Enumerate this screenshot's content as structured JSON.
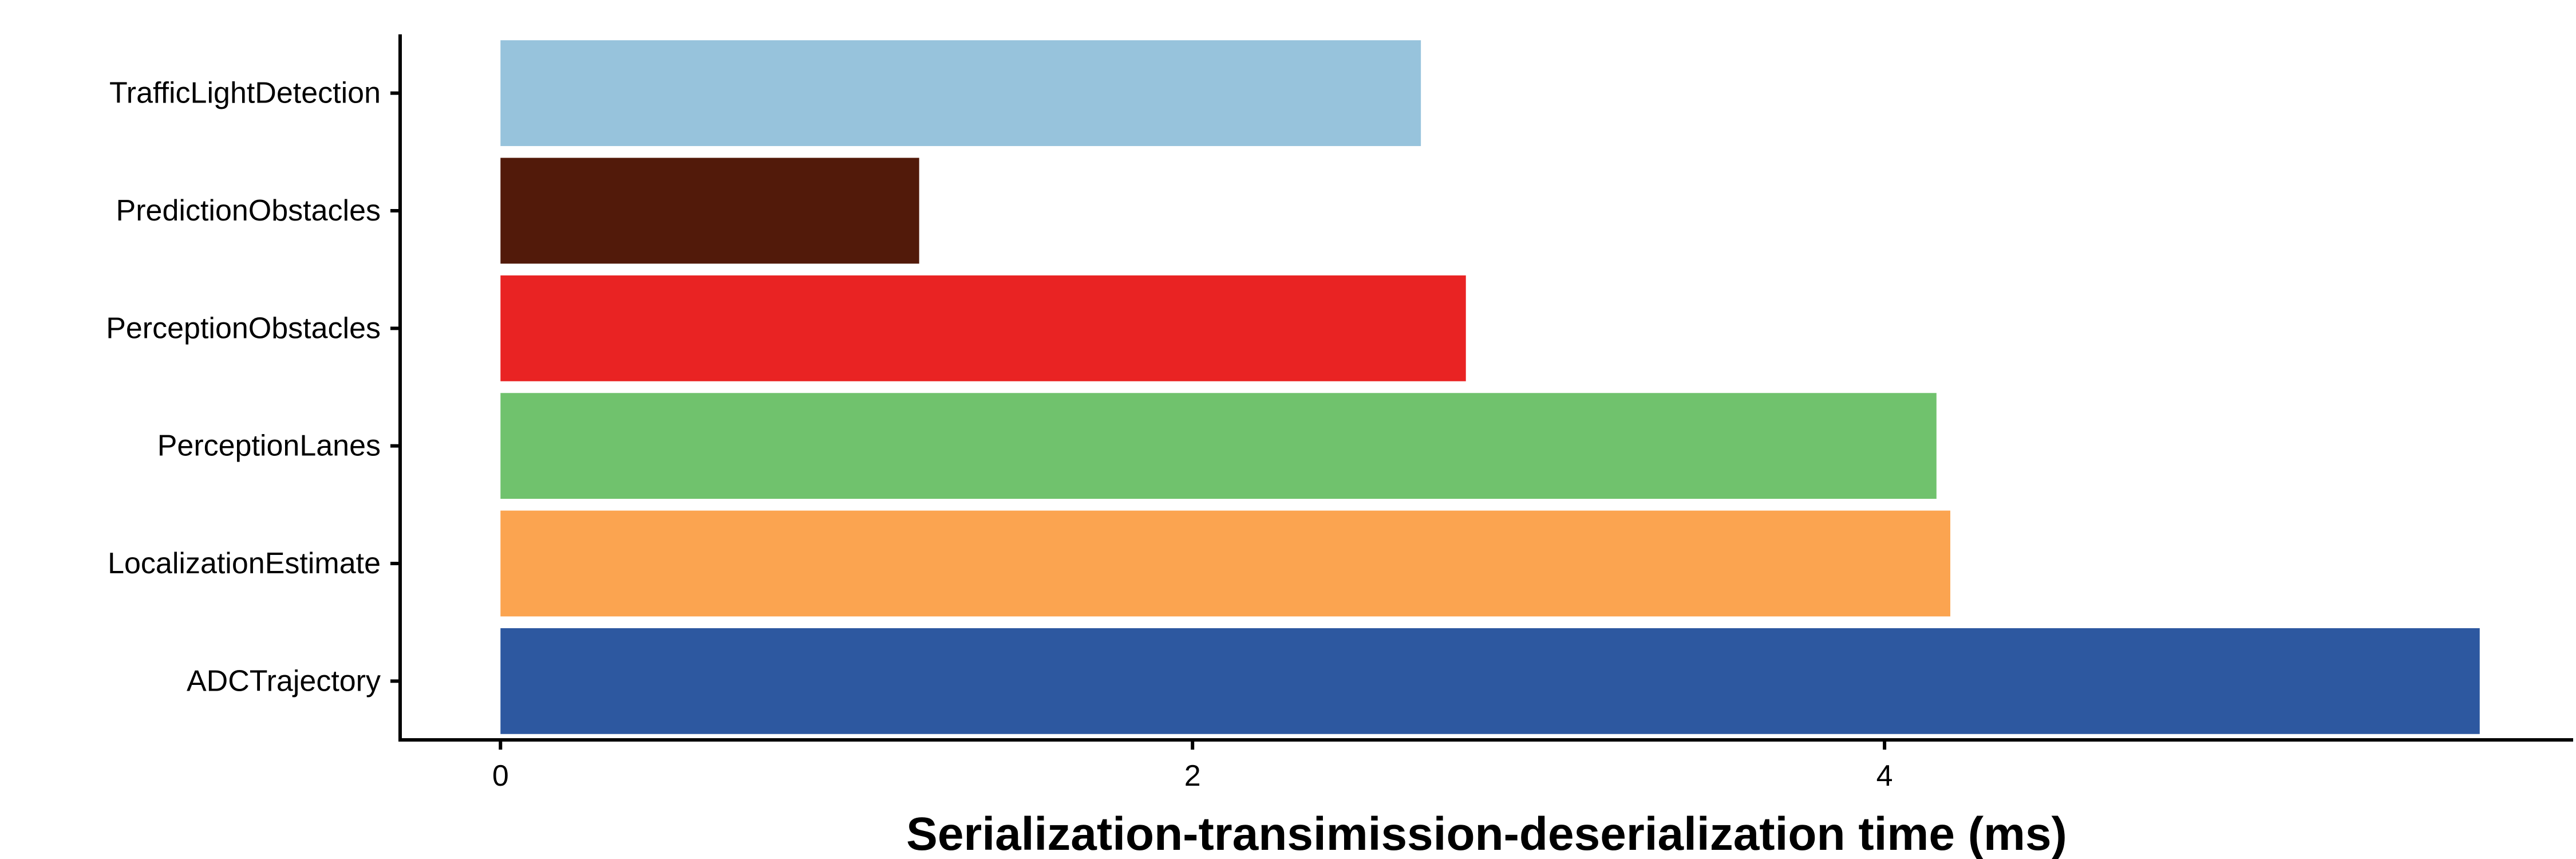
{
  "chart_data": {
    "type": "bar",
    "orientation": "horizontal",
    "categories": [
      "TrafficLightDetection",
      "PredictionObstacles",
      "PerceptionObstacles",
      "PerceptionLanes",
      "LocalizationEstimate",
      "ADCTrajectory"
    ],
    "values": [
      2.66,
      1.21,
      2.79,
      4.15,
      4.19,
      5.72
    ],
    "colors": [
      "#97c3dc",
      "#521a0a",
      "#e92323",
      "#70c26d",
      "#fba450",
      "#2d58a0"
    ],
    "title": "",
    "xlabel": "Serialization-transimission-deserialization time (ms)",
    "ylabel": "",
    "xlim": [
      -0.29,
      5.99
    ],
    "xticks": [
      0,
      2,
      4
    ],
    "xtick_labels": [
      "0",
      "2",
      "4"
    ],
    "grid": false,
    "legend": "none"
  }
}
